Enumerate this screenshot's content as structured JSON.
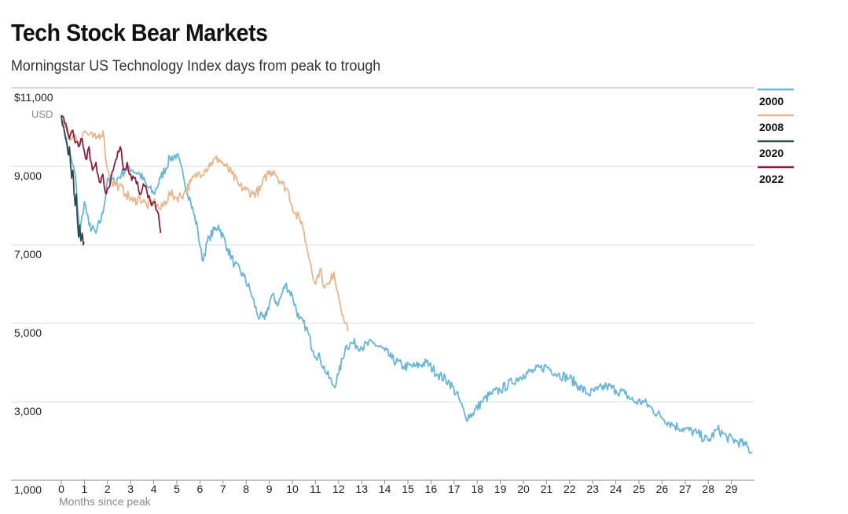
{
  "chart_data": {
    "type": "line",
    "title": "Tech Stock Bear Markets",
    "subtitle": "Morningstar US Technology Index days from peak to trough",
    "xlabel": "Months since peak",
    "ylabel": "USD",
    "xlim": [
      0,
      30
    ],
    "ylim": [
      1000,
      11000
    ],
    "x_ticks": [
      0,
      1,
      2,
      3,
      4,
      5,
      6,
      7,
      8,
      9,
      10,
      11,
      12,
      13,
      14,
      15,
      16,
      17,
      18,
      19,
      20,
      21,
      22,
      23,
      24,
      25,
      26,
      27,
      28,
      29
    ],
    "x_tick_labels": [
      "0",
      "1",
      "2",
      "3",
      "4",
      "5",
      "6",
      "7",
      "8",
      "9",
      "10",
      "11",
      "12",
      "13",
      "14",
      "15",
      "16",
      "17",
      "18",
      "19",
      "20",
      "21",
      "22",
      "23",
      "24",
      "25",
      "26",
      "27",
      "28",
      "29"
    ],
    "y_ticks": [
      1000,
      3000,
      5000,
      7000,
      9000,
      11000
    ],
    "y_tick_labels": [
      "1,000",
      "3,000",
      "5,000",
      "7,000",
      "9,000",
      "$11,000"
    ],
    "grid": true,
    "legend_position": "top-right",
    "series": [
      {
        "name": "2000",
        "color": "#6ab4d8",
        "x": [
          0,
          0.3,
          0.6,
          0.8,
          1.0,
          1.2,
          1.5,
          1.8,
          2.0,
          2.3,
          2.6,
          2.9,
          3.1,
          3.4,
          3.7,
          4.0,
          4.3,
          4.7,
          5.0,
          5.3,
          5.6,
          5.9,
          6.1,
          6.4,
          6.8,
          7.2,
          7.5,
          7.9,
          8.2,
          8.5,
          8.8,
          9.1,
          9.4,
          9.7,
          10.0,
          10.3,
          10.6,
          10.9,
          11.2,
          11.5,
          11.8,
          12.0,
          12.3,
          12.6,
          13.0,
          13.5,
          14.0,
          14.3,
          14.8,
          15.3,
          15.8,
          16.3,
          16.8,
          17.2,
          17.5,
          17.8,
          18.2,
          18.6,
          19.0,
          19.5,
          20.0,
          20.5,
          21.0,
          21.5,
          22.0,
          22.4,
          22.8,
          23.2,
          23.6,
          24.0,
          24.4,
          24.8,
          25.2,
          25.6,
          26.0,
          26.5,
          27.0,
          27.5,
          28.0,
          28.4,
          28.8,
          29.2,
          29.6,
          29.9
        ],
        "values": [
          10300,
          9400,
          8800,
          7300,
          8100,
          7500,
          7300,
          7800,
          8700,
          8600,
          8800,
          9000,
          8900,
          8800,
          8500,
          8300,
          8700,
          9200,
          9300,
          8700,
          8100,
          7400,
          6600,
          7200,
          7500,
          6900,
          6500,
          6200,
          5800,
          5200,
          5100,
          5700,
          5500,
          6000,
          5700,
          5100,
          4900,
          4300,
          4100,
          3700,
          3400,
          3700,
          4400,
          4500,
          4400,
          4500,
          4300,
          4100,
          3900,
          3900,
          4000,
          3700,
          3500,
          3100,
          2600,
          2700,
          3000,
          3200,
          3300,
          3500,
          3700,
          3800,
          3900,
          3700,
          3600,
          3400,
          3200,
          3300,
          3400,
          3300,
          3200,
          3000,
          3000,
          2800,
          2600,
          2400,
          2300,
          2200,
          2000,
          2300,
          2100,
          2000,
          1900,
          1700
        ]
      },
      {
        "name": "2008",
        "color": "#e8b58c",
        "x": [
          0,
          0.2,
          0.4,
          0.6,
          0.8,
          1.0,
          1.2,
          1.5,
          1.8,
          2.0,
          2.2,
          2.5,
          2.8,
          3.1,
          3.4,
          3.7,
          4.0,
          4.3,
          4.7,
          5.0,
          5.3,
          5.6,
          5.9,
          6.2,
          6.5,
          6.8,
          7.1,
          7.4,
          7.7,
          8.0,
          8.3,
          8.6,
          8.9,
          9.2,
          9.5,
          9.8,
          10.1,
          10.4,
          10.6,
          10.8,
          11.0,
          11.2,
          11.4,
          11.6,
          11.8,
          12.0,
          12.2,
          12.4
        ],
        "values": [
          10200,
          10000,
          9700,
          9800,
          9600,
          9900,
          9800,
          9700,
          9900,
          8900,
          8600,
          8500,
          8300,
          8100,
          8200,
          8000,
          8100,
          7900,
          8300,
          8200,
          8300,
          8600,
          8800,
          8900,
          9100,
          9200,
          9000,
          8800,
          8500,
          8400,
          8300,
          8400,
          8800,
          8900,
          8600,
          8400,
          7800,
          7600,
          7000,
          6500,
          6000,
          6400,
          5900,
          6000,
          6300,
          5700,
          5200,
          4800
        ]
      },
      {
        "name": "2020",
        "color": "#2e4a4c",
        "x": [
          0,
          0.1,
          0.2,
          0.3,
          0.35,
          0.4,
          0.45,
          0.5,
          0.55,
          0.6,
          0.65,
          0.7,
          0.75,
          0.8,
          0.85,
          0.9,
          0.95,
          1.0
        ],
        "values": [
          10300,
          10000,
          9700,
          9300,
          9500,
          9000,
          8700,
          8900,
          8300,
          8000,
          8300,
          7600,
          7200,
          7500,
          7100,
          7300,
          7000,
          7050
        ]
      },
      {
        "name": "2022",
        "color": "#8a1e3f",
        "x": [
          0,
          0.15,
          0.3,
          0.45,
          0.6,
          0.75,
          0.9,
          1.05,
          1.2,
          1.35,
          1.5,
          1.65,
          1.8,
          1.95,
          2.1,
          2.25,
          2.4,
          2.55,
          2.7,
          2.85,
          3.0,
          3.15,
          3.3,
          3.45,
          3.6,
          3.75,
          3.9,
          4.05,
          4.2,
          4.3
        ],
        "values": [
          10300,
          10100,
          9800,
          9900,
          9600,
          9500,
          9700,
          9200,
          9500,
          8900,
          9100,
          8600,
          8800,
          8300,
          8500,
          8900,
          9200,
          9500,
          8900,
          9100,
          8800,
          8700,
          8600,
          8300,
          8500,
          8200,
          8000,
          8100,
          7800,
          7300
        ]
      }
    ]
  }
}
